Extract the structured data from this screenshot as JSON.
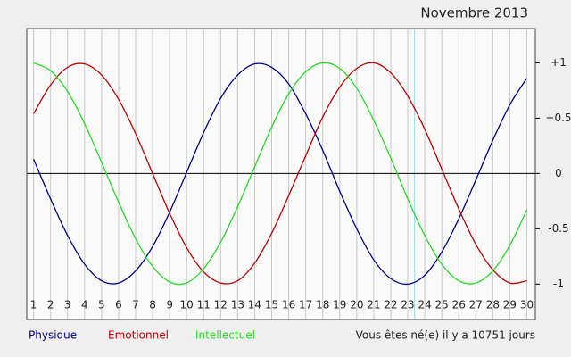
{
  "chart_data": {
    "type": "line",
    "title": "Novembre 2013",
    "xlim": [
      0.6,
      30.5
    ],
    "ylim": [
      -1.32,
      1.31
    ],
    "xticks": [
      1,
      2,
      3,
      4,
      5,
      6,
      7,
      8,
      9,
      10,
      11,
      12,
      13,
      14,
      15,
      16,
      17,
      18,
      19,
      20,
      21,
      22,
      23,
      24,
      25,
      26,
      27,
      28,
      29,
      30
    ],
    "yticks": [
      {
        "value": 1,
        "label": "+1"
      },
      {
        "value": 0.5,
        "label": "+0.5"
      },
      0,
      -0.5,
      -1
    ],
    "grid": true,
    "marker_x": 23.4,
    "marker_color": "#9fd8e8",
    "x": [
      1,
      2,
      3,
      4,
      5,
      6,
      7,
      8,
      9,
      10,
      11,
      12,
      13,
      14,
      15,
      16,
      17,
      18,
      19,
      20,
      21,
      22,
      23,
      24,
      25,
      26,
      27,
      28,
      29,
      30
    ],
    "series": [
      {
        "name": "Physique",
        "color": "#00008b",
        "values": [
          0.13,
          -0.23,
          -0.56,
          -0.82,
          -0.97,
          -0.99,
          -0.88,
          -0.66,
          -0.35,
          0.01,
          0.37,
          0.68,
          0.89,
          0.99,
          0.96,
          0.81,
          0.54,
          0.21,
          -0.16,
          -0.5,
          -0.78,
          -0.95,
          -1,
          -0.92,
          -0.71,
          -0.41,
          -0.06,
          0.3,
          0.62,
          0.86
        ]
      },
      {
        "name": "Emotionnel",
        "color": "#c00000",
        "values": [
          0.54,
          0.8,
          0.96,
          0.99,
          0.89,
          0.67,
          0.36,
          0,
          -0.36,
          -0.67,
          -0.89,
          -0.99,
          -0.97,
          -0.81,
          -0.54,
          -0.2,
          0.16,
          0.51,
          0.78,
          0.95,
          1,
          0.91,
          0.7,
          0.4,
          0.04,
          -0.32,
          -0.64,
          -0.87,
          -0.99,
          -0.97
        ]
      },
      {
        "name": "Intellectuel",
        "color": "#22dd22",
        "values": [
          1,
          0.93,
          0.74,
          0.45,
          0.1,
          -0.26,
          -0.59,
          -0.84,
          -0.98,
          -0.99,
          -0.86,
          -0.62,
          -0.3,
          0.06,
          0.42,
          0.72,
          0.92,
          1,
          0.95,
          0.77,
          0.48,
          0.14,
          -0.23,
          -0.56,
          -0.82,
          -0.97,
          -0.99,
          -0.88,
          -0.65,
          -0.33
        ]
      }
    ],
    "footer": "Vous êtes né(e) il y a 10751 jours"
  }
}
